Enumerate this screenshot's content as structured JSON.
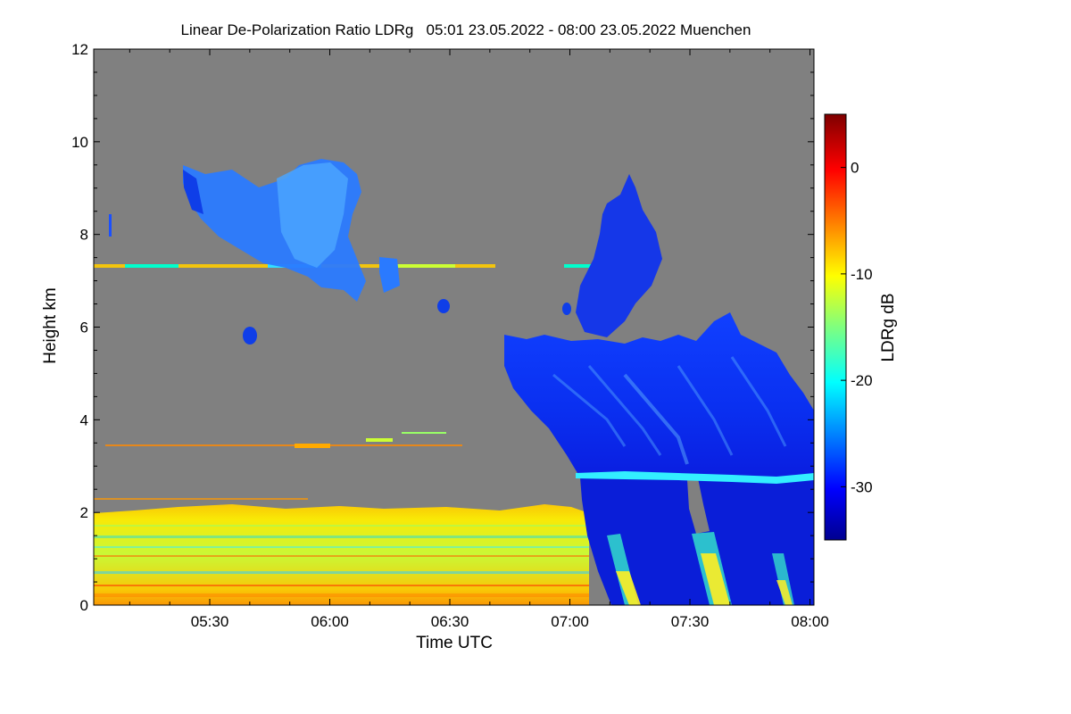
{
  "chart_data": {
    "type": "heatmap",
    "title": "Linear De-Polarization Ratio LDRg   05:01 23.05.2022 - 08:00 23.05.2022 Muenchen",
    "xlabel": "Time UTC",
    "ylabel": "Height km",
    "colorbar_label": "LDRg dB",
    "xlim": [
      "05:01",
      "08:01"
    ],
    "ylim": [
      0,
      12
    ],
    "x_ticks": [
      "05:30",
      "06:00",
      "06:30",
      "07:00",
      "07:30",
      "08:00"
    ],
    "y_ticks": [
      "0",
      "2",
      "4",
      "6",
      "8",
      "10",
      "12"
    ],
    "colorbar_ticks": [
      "0",
      "-10",
      "-20",
      "-30"
    ],
    "colorbar_range": [
      -35,
      5
    ],
    "colormap": "jet",
    "background_color": "#808080",
    "features": [
      {
        "name": "boundary layer aerosol",
        "time_start": "05:01",
        "time_end": "07:00",
        "height_km": [
          0,
          2.2
        ],
        "ldr_db": -12
      },
      {
        "name": "cirrus",
        "time_start": "05:22",
        "time_end": "06:12",
        "height_km": [
          6.5,
          9.6
        ],
        "ldr_db": -26
      },
      {
        "name": "thin layer",
        "time_start": "05:01",
        "time_end": "06:42",
        "height_km": [
          7.25,
          7.35
        ],
        "ldr_db": -14
      },
      {
        "name": "ice cloud",
        "time_start": "06:42",
        "time_end": "08:01",
        "height_km": [
          2.9,
          6.4
        ],
        "ldr_db": -32
      },
      {
        "name": "upper ice cloud",
        "time_start": "06:59",
        "time_end": "07:22",
        "height_km": [
          6.2,
          9.4
        ],
        "ldr_db": -33
      },
      {
        "name": "melting layer",
        "time_start": "07:00",
        "time_end": "08:01",
        "height_km": [
          2.7,
          2.9
        ],
        "ldr_db": -20
      },
      {
        "name": "rain",
        "time_start": "07:00",
        "time_end": "08:01",
        "height_km": [
          0,
          2.7
        ],
        "ldr_db": -34
      },
      {
        "name": "elevated aerosol layer",
        "time_start": "05:01",
        "time_end": "06:30",
        "height_km": [
          3.35,
          3.5
        ],
        "ldr_db": -6
      }
    ]
  }
}
